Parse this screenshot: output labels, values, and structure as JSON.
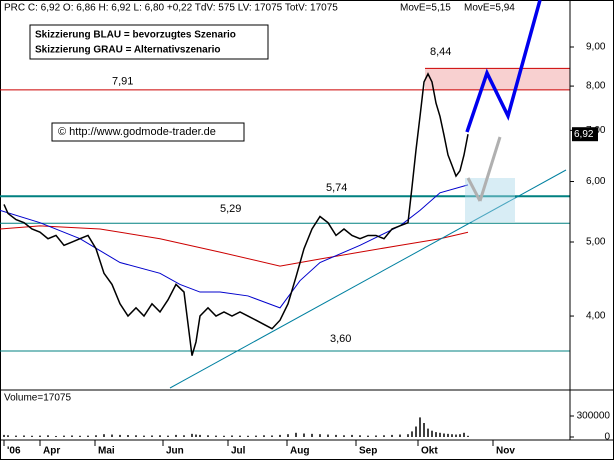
{
  "chart_data": {
    "type": "line",
    "log": true,
    "header": "PRC C: 6,92 O: 6,86 H: 6,92 L: 6,80 +0,22 TdV: 575 LV: 17075 TotV: 17075",
    "notes": [
      "Skizzierung BLAU = bevorzugtes Szenario",
      "Skizzierung GRAU = Alternativszenario"
    ],
    "copyright": "© http://www.godmode-trader.de",
    "color": "#000000",
    "x": [
      1,
      2,
      4,
      6,
      8,
      10,
      12,
      14,
      16,
      18,
      20,
      22,
      24,
      26,
      28,
      30,
      32,
      34,
      36,
      38,
      40,
      42,
      44,
      46,
      48,
      49,
      50,
      52,
      54,
      56,
      58,
      60,
      62,
      64,
      66,
      68,
      70,
      72,
      74,
      76,
      78,
      80,
      82,
      84,
      86,
      88,
      90,
      92,
      94,
      96,
      98,
      100,
      102,
      103,
      104,
      105,
      106,
      107,
      108,
      109,
      110,
      111,
      112,
      113,
      114,
      115,
      116,
      117
    ],
    "values": [
      5.6,
      5.45,
      5.35,
      5.3,
      5.2,
      5.15,
      5.05,
      5.1,
      4.95,
      5.0,
      5.05,
      5.1,
      4.9,
      4.55,
      4.4,
      4.15,
      4.0,
      4.1,
      4.0,
      4.15,
      4.05,
      4.2,
      4.4,
      4.3,
      3.55,
      3.7,
      4.0,
      4.1,
      4.0,
      4.05,
      4.0,
      4.05,
      4.0,
      3.95,
      3.9,
      3.85,
      3.95,
      4.15,
      4.5,
      4.9,
      5.2,
      5.4,
      5.3,
      5.1,
      5.2,
      5.1,
      5.05,
      5.1,
      5.1,
      5.05,
      5.2,
      5.25,
      5.3,
      5.9,
      6.6,
      7.3,
      8.1,
      8.3,
      8.1,
      7.6,
      7.3,
      6.9,
      6.5,
      6.3,
      6.1,
      6.2,
      6.5,
      6.92
    ],
    "series": [
      {
        "name": "MovE=5,15",
        "color": "#cc0000",
        "x": [
          0,
          10,
          25,
          40,
          55,
          70,
          80,
          90,
          100,
          110,
          117
        ],
        "values": [
          5.2,
          5.25,
          5.2,
          5.05,
          4.85,
          4.65,
          4.75,
          4.85,
          4.95,
          5.05,
          5.15
        ]
      },
      {
        "name": "MovE=5,94",
        "color": "#0000cc",
        "x": [
          0,
          10,
          20,
          30,
          40,
          45,
          50,
          55,
          62,
          70,
          75,
          80,
          90,
          100,
          105,
          110,
          117
        ],
        "values": [
          5.5,
          5.3,
          5.05,
          4.7,
          4.55,
          4.4,
          4.3,
          4.3,
          4.25,
          4.1,
          4.45,
          4.7,
          4.95,
          5.25,
          5.5,
          5.8,
          5.94
        ]
      }
    ],
    "last_price": {
      "value": 6.92,
      "label": "6,92"
    },
    "levels": [
      {
        "value": 7.91,
        "label": "7,91",
        "color": "#cc0000"
      },
      {
        "value": 8.44,
        "label": "8,44",
        "color": "#cc0000"
      },
      {
        "value": 5.74,
        "label": "5,74",
        "color": "#008080"
      },
      {
        "value": 5.29,
        "label": "5,29",
        "color": "#008080"
      },
      {
        "value": 3.6,
        "label": "3,60",
        "color": "#008080"
      }
    ],
    "xlim": [
      0,
      142.5
    ],
    "xticks": [
      {
        "value": 1,
        "label": "'06"
      },
      {
        "value": 10,
        "label": "Apr"
      },
      {
        "value": 23.75,
        "label": "Mai"
      },
      {
        "value": 40.75,
        "label": "Jun"
      },
      {
        "value": 57,
        "label": "Jul"
      },
      {
        "value": 71.75,
        "label": "Aug"
      },
      {
        "value": 89,
        "label": "Sep"
      },
      {
        "value": 104.5,
        "label": "Okt"
      },
      {
        "value": 123.25,
        "label": "Nov"
      }
    ],
    "ylim": [
      3.22,
      10.37
    ],
    "yticks": [
      {
        "value": 4,
        "label": "4,00"
      },
      {
        "value": 5,
        "label": "5,00"
      },
      {
        "value": 6,
        "label": "6,00"
      },
      {
        "value": 7,
        "label": "7,00"
      },
      {
        "value": 8,
        "label": "8,00"
      },
      {
        "value": 9,
        "label": "9,00"
      }
    ],
    "volume": {
      "title": "Volume=17075",
      "color": "#000000",
      "values": [
        30000,
        25000,
        20000,
        22000,
        18000,
        20000,
        25000,
        15000,
        20000,
        22000,
        18000,
        20000,
        25000,
        40000,
        35000,
        30000,
        28000,
        25000,
        20000,
        22000,
        25000,
        20000,
        30000,
        25000,
        45000,
        35000,
        30000,
        25000,
        20000,
        18000,
        22000,
        20000,
        18000,
        20000,
        25000,
        22000,
        30000,
        40000,
        60000,
        50000,
        45000,
        40000,
        35000,
        30000,
        25000,
        30000,
        25000,
        20000,
        22000,
        25000,
        30000,
        35000,
        40000,
        80000,
        150000,
        280000,
        200000,
        120000,
        90000,
        70000,
        60000,
        50000,
        45000,
        40000,
        35000,
        40000,
        60000,
        17075
      ],
      "ylim": [
        0,
        600000
      ],
      "yticks": [
        0,
        300000
      ]
    }
  }
}
